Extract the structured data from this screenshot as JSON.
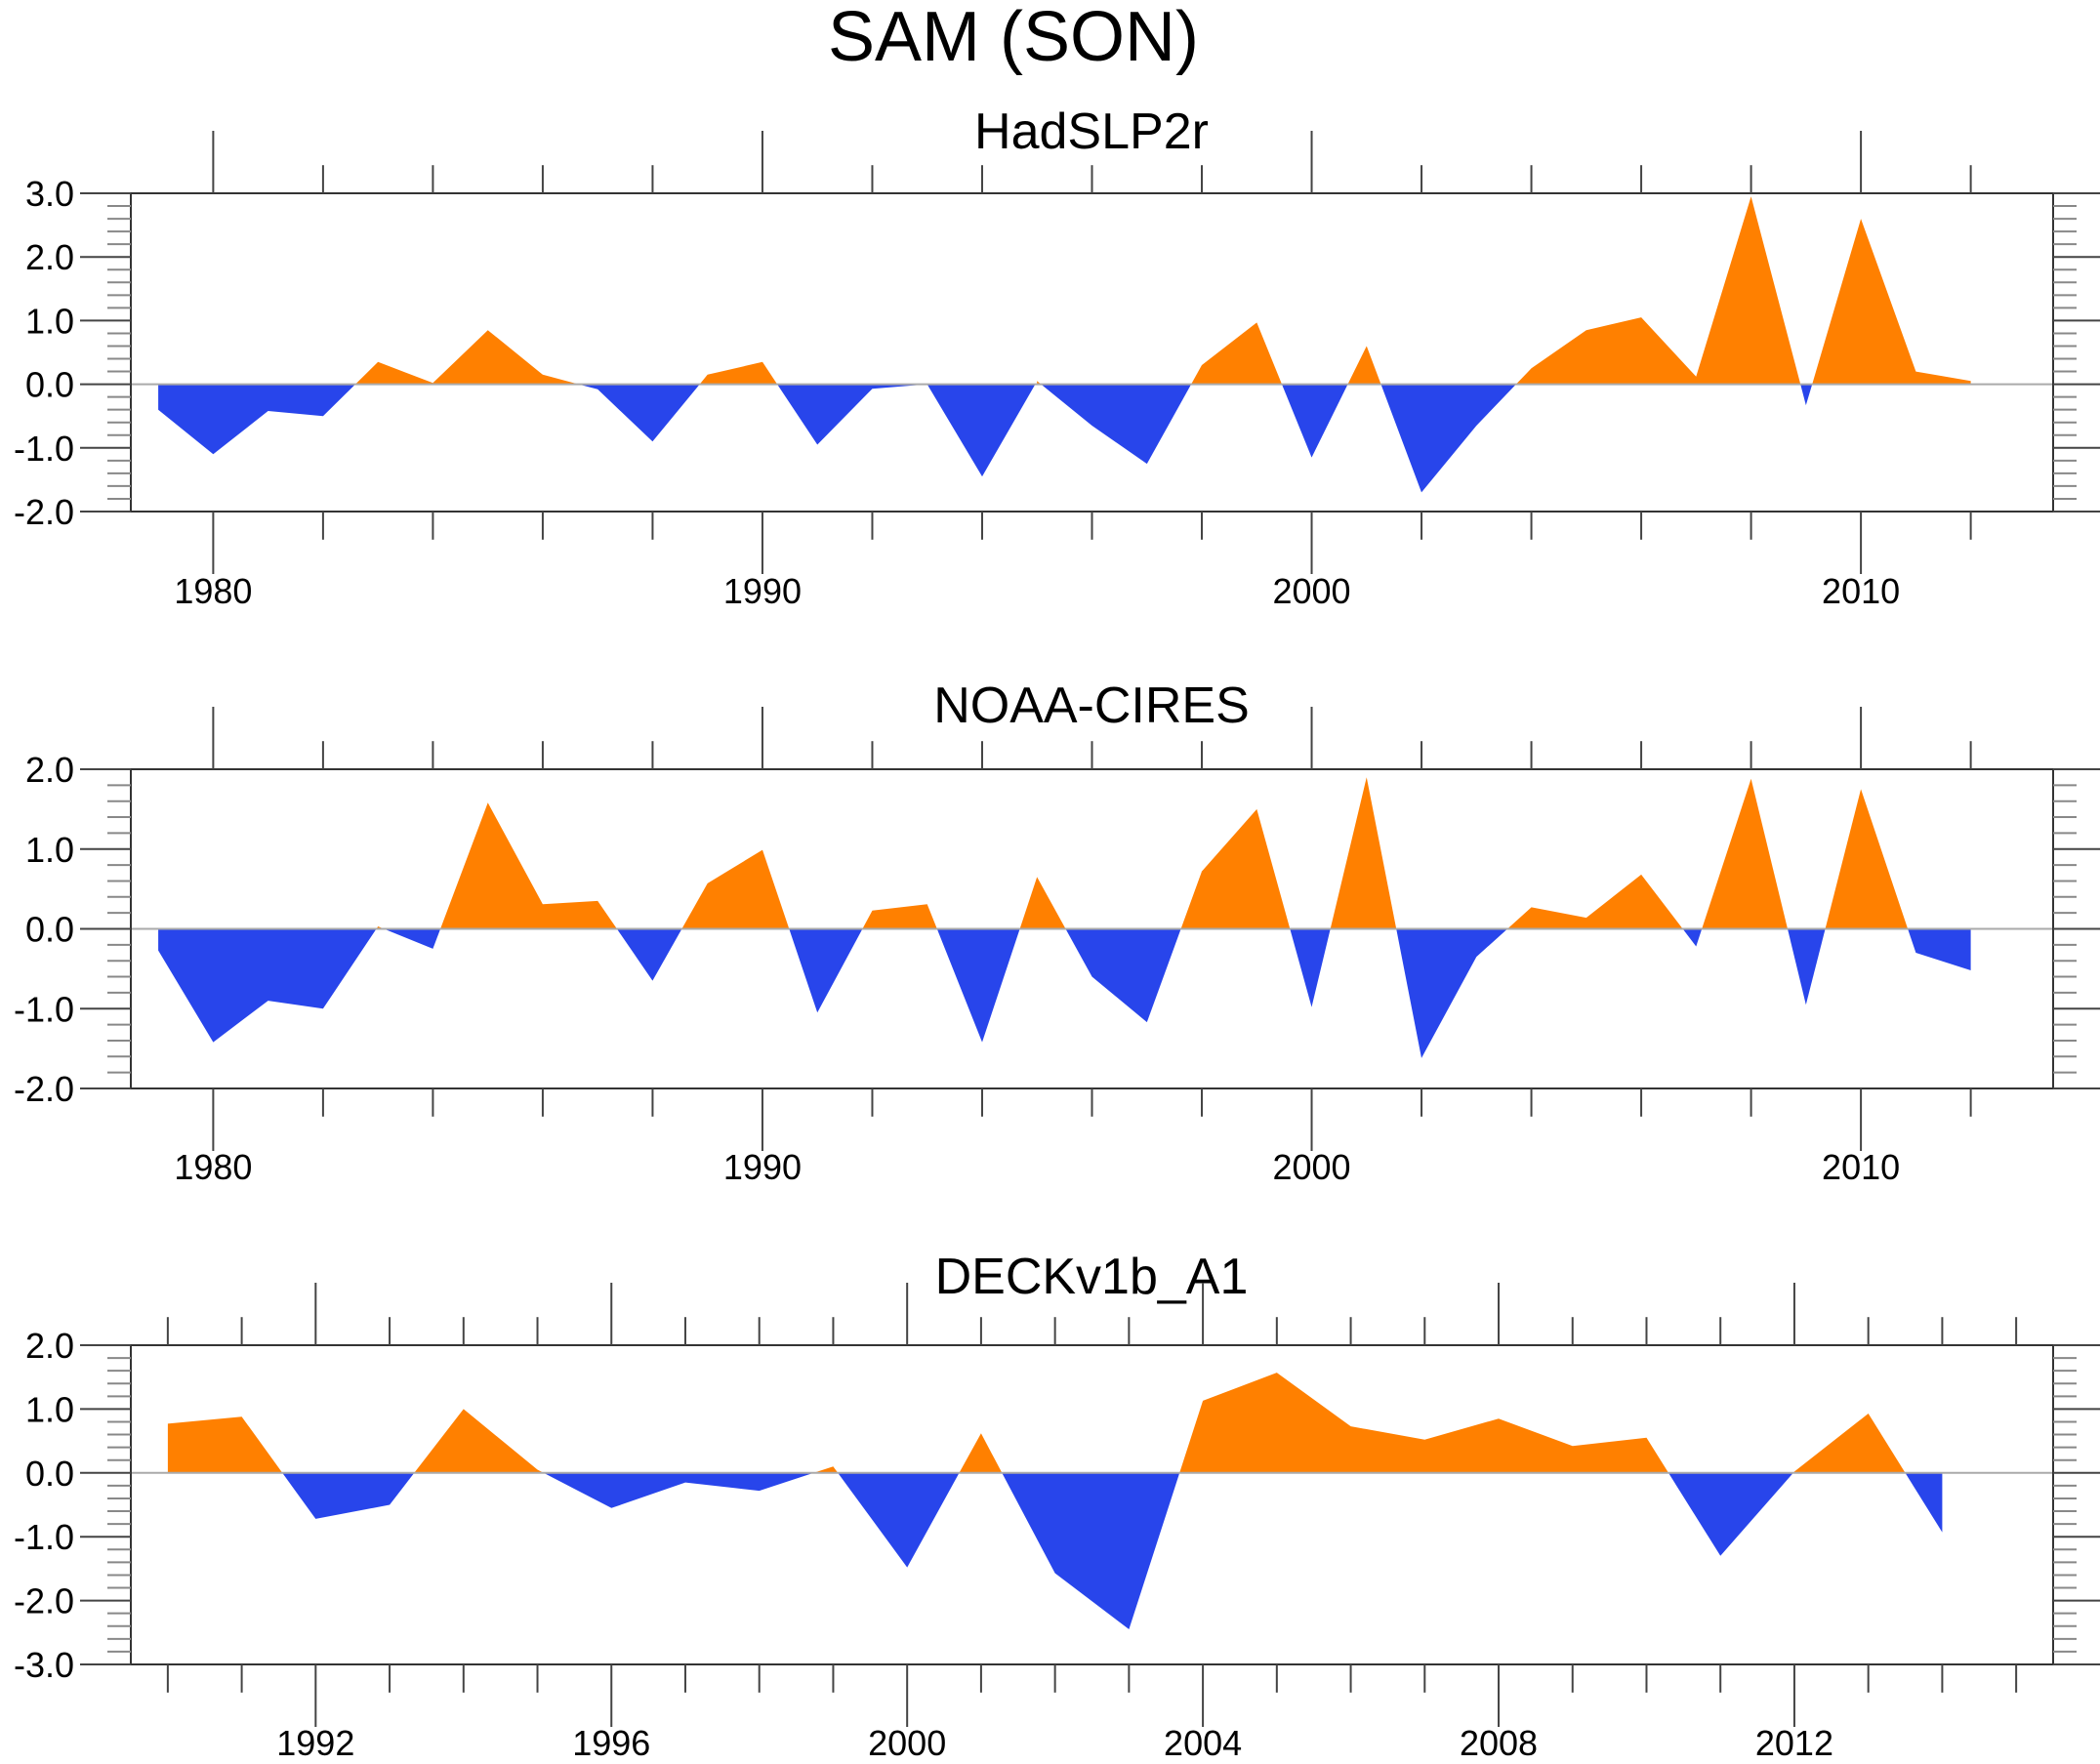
{
  "figure": {
    "title": "SAM (SON)",
    "colors": {
      "positive": "#FF8000",
      "negative": "#2845EB"
    }
  },
  "chart_data": [
    {
      "type": "area",
      "title": "HadSLP2r",
      "xlabel": "",
      "ylabel": "",
      "xlim": [
        1978.5,
        2013.5
      ],
      "ylim": [
        -2.0,
        3.0
      ],
      "yticks": [
        3.0,
        2.0,
        1.0,
        0.0,
        -1.0,
        -2.0
      ],
      "ytick_labels": [
        "3.0",
        "2.0",
        "1.0",
        "0.0",
        "-1.0",
        "-2.0"
      ],
      "xticks_major": [
        1980,
        1990,
        2000,
        2010
      ],
      "xtick_labels": [
        "1980",
        "1990",
        "2000",
        "2010"
      ],
      "xtick_minor_step": 2,
      "x": [
        1979,
        1980,
        1981,
        1982,
        1983,
        1984,
        1985,
        1986,
        1987,
        1988,
        1989,
        1990,
        1991,
        1992,
        1993,
        1994,
        1995,
        1996,
        1997,
        1998,
        1999,
        2000,
        2001,
        2002,
        2003,
        2004,
        2005,
        2006,
        2007,
        2008,
        2009,
        2010,
        2011,
        2012
      ],
      "values": [
        -0.4,
        -1.1,
        -0.42,
        -0.5,
        0.35,
        0.02,
        0.85,
        0.15,
        -0.08,
        -0.9,
        0.15,
        0.35,
        -0.95,
        -0.07,
        0.0,
        -1.45,
        0.05,
        -0.65,
        -1.25,
        0.3,
        0.97,
        -1.15,
        0.6,
        -1.7,
        -0.65,
        0.25,
        0.85,
        1.05,
        0.12,
        2.95,
        -0.33,
        2.6,
        0.2,
        0.05
      ],
      "fill_above_zero": "positive",
      "fill_below_zero": "negative",
      "grid": false
    },
    {
      "type": "area",
      "title": "NOAA-CIRES",
      "xlabel": "",
      "ylabel": "",
      "xlim": [
        1978.5,
        2013.5
      ],
      "ylim": [
        -2.0,
        2.0
      ],
      "yticks": [
        2.0,
        1.0,
        0.0,
        -1.0,
        -2.0
      ],
      "ytick_labels": [
        "2.0",
        "1.0",
        "0.0",
        "-1.0",
        "-2.0"
      ],
      "xticks_major": [
        1980,
        1990,
        2000,
        2010
      ],
      "xtick_labels": [
        "1980",
        "1990",
        "2000",
        "2010"
      ],
      "xtick_minor_step": 2,
      "x": [
        1979,
        1980,
        1981,
        1982,
        1983,
        1984,
        1985,
        1986,
        1987,
        1988,
        1989,
        1990,
        1991,
        1992,
        1993,
        1994,
        1995,
        1996,
        1997,
        1998,
        1999,
        2000,
        2001,
        2002,
        2003,
        2004,
        2005,
        2006,
        2007,
        2008,
        2009,
        2010,
        2011,
        2012
      ],
      "values": [
        -0.27,
        -1.42,
        -0.9,
        -1.0,
        0.03,
        -0.25,
        1.58,
        0.31,
        0.35,
        -0.65,
        0.57,
        0.99,
        -1.05,
        0.23,
        0.31,
        -1.42,
        0.65,
        -0.6,
        -1.17,
        0.72,
        1.5,
        -0.98,
        1.9,
        -1.62,
        -0.35,
        0.27,
        0.14,
        0.68,
        -0.22,
        1.88,
        -0.95,
        1.75,
        -0.3,
        -0.52
      ],
      "fill_above_zero": "positive",
      "fill_below_zero": "negative",
      "grid": false
    },
    {
      "type": "area",
      "title": "DECKv1b_A1",
      "xlabel": "",
      "ylabel": "",
      "xlim": [
        1989.5,
        2015.5
      ],
      "ylim": [
        -3.0,
        2.0
      ],
      "yticks": [
        2.0,
        1.0,
        0.0,
        -1.0,
        -2.0,
        -3.0
      ],
      "ytick_labels": [
        "2.0",
        "1.0",
        "0.0",
        "-1.0",
        "-2.0",
        "-3.0"
      ],
      "xticks_major": [
        1992,
        1996,
        2000,
        2004,
        2008,
        2012
      ],
      "xtick_labels": [
        "1992",
        "1996",
        "2000",
        "2004",
        "2008",
        "2012"
      ],
      "xtick_minor_step": 1,
      "x": [
        1990,
        1991,
        1992,
        1993,
        1994,
        1995,
        1996,
        1997,
        1998,
        1999,
        2000,
        2001,
        2002,
        2003,
        2004,
        2005,
        2006,
        2007,
        2008,
        2009,
        2010,
        2011,
        2012,
        2013,
        2014
      ],
      "values": [
        0.77,
        0.88,
        -0.72,
        -0.5,
        1.0,
        0.05,
        -0.55,
        -0.15,
        -0.28,
        0.1,
        -1.48,
        0.62,
        -1.57,
        -2.45,
        1.13,
        1.57,
        0.73,
        0.52,
        0.85,
        0.42,
        0.55,
        -1.3,
        0.02,
        0.93,
        -0.93
      ],
      "fill_above_zero": "positive",
      "fill_below_zero": "negative",
      "grid": false
    }
  ]
}
